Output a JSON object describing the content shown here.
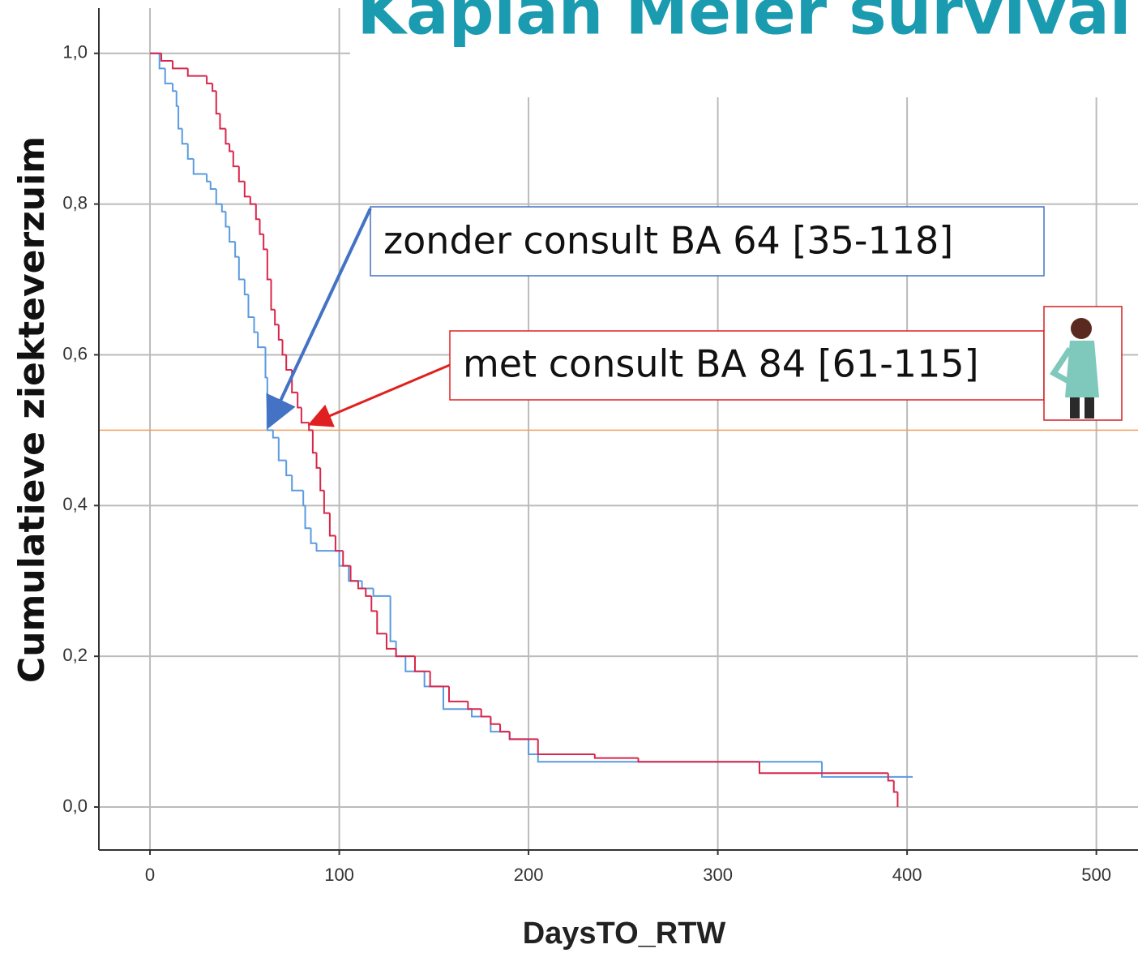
{
  "chart_data": {
    "type": "step",
    "title": "Kaplan Meier survival",
    "xlabel": "DaysTO_RTW",
    "ylabel": "Cumulatieve ziekteverzuim",
    "xlim": [
      -27,
      522
    ],
    "ylim": [
      -0.057,
      1.06
    ],
    "xticks": [
      0,
      100,
      200,
      300,
      400,
      500
    ],
    "yticks": [
      {
        "value": 0,
        "label": "0,0"
      },
      {
        "value": 0.2,
        "label": "0,2"
      },
      {
        "value": 0.4,
        "label": "0,4"
      },
      {
        "value": 0.6,
        "label": "0,6"
      },
      {
        "value": 0.8,
        "label": "0,8"
      },
      {
        "value": 1,
        "label": "1,0"
      }
    ],
    "grid": true,
    "reference_line": {
      "value": 0.5,
      "color": "#f0a060"
    },
    "series": [
      {
        "color": "#5a9be0",
        "x": [
          0,
          5,
          8,
          12,
          14,
          15,
          17,
          20,
          23,
          30,
          32,
          35,
          38,
          40,
          42,
          45,
          47,
          50,
          52,
          55,
          57,
          61,
          62,
          65,
          68,
          72,
          75,
          81,
          82,
          85,
          88,
          100,
          105,
          112,
          118,
          127,
          130,
          135,
          145,
          155,
          170,
          180,
          190,
          200,
          205,
          355,
          403
        ],
        "values": [
          1.0,
          0.98,
          0.96,
          0.95,
          0.93,
          0.9,
          0.88,
          0.86,
          0.84,
          0.83,
          0.82,
          0.8,
          0.79,
          0.77,
          0.75,
          0.73,
          0.7,
          0.68,
          0.65,
          0.63,
          0.61,
          0.57,
          0.5,
          0.49,
          0.46,
          0.44,
          0.42,
          0.4,
          0.37,
          0.35,
          0.34,
          0.32,
          0.3,
          0.29,
          0.28,
          0.22,
          0.2,
          0.18,
          0.16,
          0.13,
          0.12,
          0.1,
          0.09,
          0.07,
          0.06,
          0.04,
          0.04
        ]
      },
      {
        "color": "#d9264a",
        "x": [
          0,
          6,
          12,
          20,
          30,
          33,
          35,
          37,
          40,
          42,
          44,
          47,
          50,
          53,
          56,
          58,
          60,
          62,
          64,
          66,
          68,
          70,
          72,
          75,
          78,
          80,
          84,
          86,
          88,
          90,
          92,
          95,
          98,
          102,
          106,
          110,
          114,
          117,
          120,
          125,
          130,
          140,
          148,
          158,
          168,
          175,
          180,
          185,
          190,
          205,
          235,
          258,
          322,
          390,
          393,
          395
        ],
        "values": [
          1.0,
          0.99,
          0.98,
          0.97,
          0.96,
          0.95,
          0.92,
          0.9,
          0.88,
          0.87,
          0.85,
          0.83,
          0.81,
          0.8,
          0.78,
          0.76,
          0.74,
          0.7,
          0.66,
          0.64,
          0.62,
          0.6,
          0.58,
          0.55,
          0.53,
          0.51,
          0.5,
          0.47,
          0.45,
          0.42,
          0.39,
          0.36,
          0.34,
          0.32,
          0.3,
          0.29,
          0.28,
          0.26,
          0.23,
          0.21,
          0.2,
          0.18,
          0.16,
          0.14,
          0.13,
          0.12,
          0.11,
          0.1,
          0.09,
          0.07,
          0.065,
          0.06,
          0.045,
          0.035,
          0.02,
          0.0
        ]
      }
    ],
    "annotations": [
      "zonder consult BA 64 [35-118]",
      "met consult BA 84 [61-115]"
    ]
  }
}
